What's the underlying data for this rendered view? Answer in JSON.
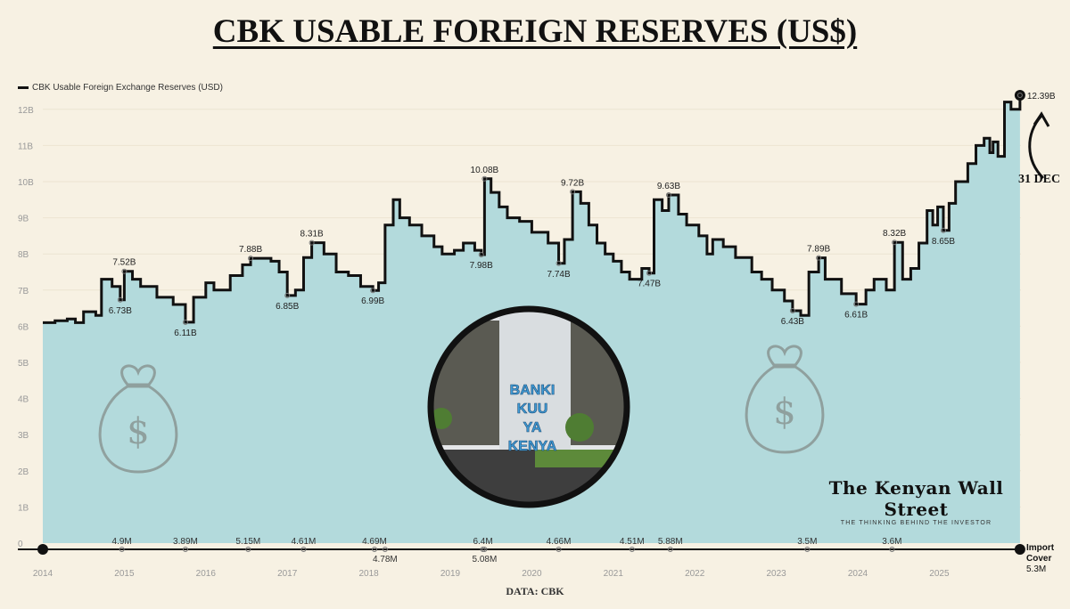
{
  "title": "CBK USABLE FOREIGN RESERVES (US$)",
  "legend_label": "CBK Usable Foreign Exchange Reserves (USD)",
  "source": "DATA: CBK",
  "annotation_date": "31 DEC",
  "photo_sign": [
    "BANKI",
    "KUU",
    "YA",
    "KENYA"
  ],
  "brand": {
    "name": "The Kenyan Wall Street",
    "tagline": "THE THINKING BEHIND THE INVESTOR"
  },
  "import_cover_label": [
    "Import",
    "Cover",
    "5.3M"
  ],
  "colors": {
    "background": "#f7f1e3",
    "area_fill": "#b3dadc",
    "line": "#111111"
  },
  "chart_data": {
    "type": "area",
    "step": true,
    "title": "CBK USABLE FOREIGN RESERVES (US$)",
    "ylabel": "",
    "xlabel": "",
    "ylim": [
      0,
      12.6
    ],
    "xlim": [
      2014,
      2026
    ],
    "grid": true,
    "legend_position": "top-left",
    "y_ticks": [
      "0",
      "1B",
      "2B",
      "3B",
      "4B",
      "5B",
      "6B",
      "7B",
      "8B",
      "9B",
      "10B",
      "11B",
      "12B"
    ],
    "x_ticks": [
      "2014",
      "2015",
      "2016",
      "2017",
      "2018",
      "2019",
      "2020",
      "2021",
      "2022",
      "2023",
      "2024",
      "2025"
    ],
    "series": [
      {
        "name": "CBK Usable Foreign Exchange Reserves (USD)",
        "unit": "billion USD",
        "points": [
          [
            2014.0,
            6.1
          ],
          [
            2014.15,
            6.15
          ],
          [
            2014.3,
            6.2
          ],
          [
            2014.4,
            6.1
          ],
          [
            2014.5,
            6.4
          ],
          [
            2014.65,
            6.3
          ],
          [
            2014.72,
            7.3
          ],
          [
            2014.85,
            7.1
          ],
          [
            2014.95,
            6.73
          ],
          [
            2015.0,
            7.52
          ],
          [
            2015.1,
            7.3
          ],
          [
            2015.2,
            7.1
          ],
          [
            2015.4,
            6.8
          ],
          [
            2015.6,
            6.6
          ],
          [
            2015.75,
            6.11
          ],
          [
            2015.85,
            6.8
          ],
          [
            2016.0,
            7.2
          ],
          [
            2016.1,
            7.0
          ],
          [
            2016.3,
            7.4
          ],
          [
            2016.45,
            7.7
          ],
          [
            2016.55,
            7.88
          ],
          [
            2016.8,
            7.8
          ],
          [
            2016.9,
            7.5
          ],
          [
            2017.0,
            6.85
          ],
          [
            2017.1,
            7.0
          ],
          [
            2017.2,
            7.9
          ],
          [
            2017.3,
            8.31
          ],
          [
            2017.45,
            8.0
          ],
          [
            2017.6,
            7.5
          ],
          [
            2017.75,
            7.4
          ],
          [
            2017.9,
            7.1
          ],
          [
            2018.05,
            6.99
          ],
          [
            2018.12,
            7.2
          ],
          [
            2018.2,
            8.8
          ],
          [
            2018.3,
            9.5
          ],
          [
            2018.38,
            9.0
          ],
          [
            2018.5,
            8.8
          ],
          [
            2018.65,
            8.5
          ],
          [
            2018.8,
            8.2
          ],
          [
            2018.9,
            8.0
          ],
          [
            2019.05,
            8.1
          ],
          [
            2019.16,
            8.3
          ],
          [
            2019.3,
            8.1
          ],
          [
            2019.38,
            7.98
          ],
          [
            2019.42,
            10.08
          ],
          [
            2019.5,
            9.7
          ],
          [
            2019.6,
            9.3
          ],
          [
            2019.7,
            9.0
          ],
          [
            2019.85,
            8.9
          ],
          [
            2020.0,
            8.6
          ],
          [
            2020.2,
            8.3
          ],
          [
            2020.33,
            7.74
          ],
          [
            2020.4,
            8.4
          ],
          [
            2020.5,
            9.72
          ],
          [
            2020.6,
            9.4
          ],
          [
            2020.7,
            8.8
          ],
          [
            2020.8,
            8.3
          ],
          [
            2020.9,
            8.0
          ],
          [
            2021.0,
            7.8
          ],
          [
            2021.1,
            7.5
          ],
          [
            2021.2,
            7.3
          ],
          [
            2021.35,
            7.6
          ],
          [
            2021.44,
            7.47
          ],
          [
            2021.5,
            9.5
          ],
          [
            2021.6,
            9.2
          ],
          [
            2021.68,
            9.63
          ],
          [
            2021.8,
            9.1
          ],
          [
            2021.9,
            8.8
          ],
          [
            2022.05,
            8.5
          ],
          [
            2022.15,
            8.0
          ],
          [
            2022.22,
            8.4
          ],
          [
            2022.35,
            8.2
          ],
          [
            2022.5,
            7.9
          ],
          [
            2022.7,
            7.5
          ],
          [
            2022.82,
            7.3
          ],
          [
            2022.95,
            7.0
          ],
          [
            2023.1,
            6.7
          ],
          [
            2023.2,
            6.43
          ],
          [
            2023.3,
            6.3
          ],
          [
            2023.4,
            7.5
          ],
          [
            2023.52,
            7.89
          ],
          [
            2023.6,
            7.3
          ],
          [
            2023.8,
            6.9
          ],
          [
            2023.98,
            6.61
          ],
          [
            2024.1,
            7.0
          ],
          [
            2024.2,
            7.3
          ],
          [
            2024.35,
            7.0
          ],
          [
            2024.45,
            8.32
          ],
          [
            2024.55,
            7.3
          ],
          [
            2024.65,
            7.6
          ],
          [
            2024.75,
            8.3
          ],
          [
            2024.85,
            9.2
          ],
          [
            2024.92,
            8.8
          ],
          [
            2024.98,
            9.3
          ],
          [
            2025.05,
            8.65
          ],
          [
            2025.12,
            9.4
          ],
          [
            2025.2,
            10.0
          ],
          [
            2025.35,
            10.5
          ],
          [
            2025.45,
            11.0
          ],
          [
            2025.55,
            11.2
          ],
          [
            2025.62,
            10.8
          ],
          [
            2025.66,
            11.1
          ],
          [
            2025.72,
            10.7
          ],
          [
            2025.8,
            12.2
          ],
          [
            2025.88,
            12.0
          ],
          [
            2025.99,
            12.39
          ]
        ]
      }
    ],
    "value_labels": [
      {
        "x": 2014.95,
        "value": 6.73,
        "text": "6.73B",
        "pos": "below"
      },
      {
        "x": 2015.0,
        "value": 7.52,
        "text": "7.52B",
        "pos": "above"
      },
      {
        "x": 2015.75,
        "value": 6.11,
        "text": "6.11B",
        "pos": "below"
      },
      {
        "x": 2016.55,
        "value": 7.88,
        "text": "7.88B",
        "pos": "above"
      },
      {
        "x": 2017.0,
        "value": 6.85,
        "text": "6.85B",
        "pos": "below"
      },
      {
        "x": 2017.3,
        "value": 8.31,
        "text": "8.31B",
        "pos": "above"
      },
      {
        "x": 2018.05,
        "value": 6.99,
        "text": "6.99B",
        "pos": "below"
      },
      {
        "x": 2019.38,
        "value": 7.98,
        "text": "7.98B",
        "pos": "below"
      },
      {
        "x": 2019.42,
        "value": 10.08,
        "text": "10.08B",
        "pos": "above"
      },
      {
        "x": 2020.33,
        "value": 7.74,
        "text": "7.74B",
        "pos": "below"
      },
      {
        "x": 2020.5,
        "value": 9.72,
        "text": "9.72B",
        "pos": "above"
      },
      {
        "x": 2021.44,
        "value": 7.47,
        "text": "7.47B",
        "pos": "below"
      },
      {
        "x": 2021.68,
        "value": 9.63,
        "text": "9.63B",
        "pos": "above"
      },
      {
        "x": 2023.2,
        "value": 6.43,
        "text": "6.43B",
        "pos": "below"
      },
      {
        "x": 2023.52,
        "value": 7.89,
        "text": "7.89B",
        "pos": "above"
      },
      {
        "x": 2023.98,
        "value": 6.61,
        "text": "6.61B",
        "pos": "below"
      },
      {
        "x": 2024.45,
        "value": 8.32,
        "text": "8.32B",
        "pos": "above"
      },
      {
        "x": 2025.05,
        "value": 8.65,
        "text": "8.65B",
        "pos": "below"
      },
      {
        "x": 2025.99,
        "value": 12.39,
        "text": "12.39B",
        "pos": "right"
      }
    ],
    "import_cover": {
      "name": "Import Cover",
      "points": [
        {
          "x": 2014.97,
          "text": "4.9M",
          "pos": "above"
        },
        {
          "x": 2015.75,
          "text": "3.89M",
          "pos": "above"
        },
        {
          "x": 2016.52,
          "text": "5.15M",
          "pos": "above"
        },
        {
          "x": 2017.2,
          "text": "4.61M",
          "pos": "above"
        },
        {
          "x": 2018.07,
          "text": "4.69M",
          "pos": "above"
        },
        {
          "x": 2018.2,
          "text": "4.78M",
          "pos": "below"
        },
        {
          "x": 2019.4,
          "text": "6.4M",
          "pos": "above"
        },
        {
          "x": 2019.42,
          "text": "5.08M",
          "pos": "below"
        },
        {
          "x": 2020.33,
          "text": "4.66M",
          "pos": "above"
        },
        {
          "x": 2021.23,
          "text": "4.51M",
          "pos": "above"
        },
        {
          "x": 2021.7,
          "text": "5.88M",
          "pos": "above"
        },
        {
          "x": 2023.38,
          "text": "3.5M",
          "pos": "above"
        },
        {
          "x": 2024.42,
          "text": "3.6M",
          "pos": "above"
        },
        {
          "x": 2025.99,
          "text": "5.3M",
          "pos": "right"
        }
      ]
    }
  }
}
